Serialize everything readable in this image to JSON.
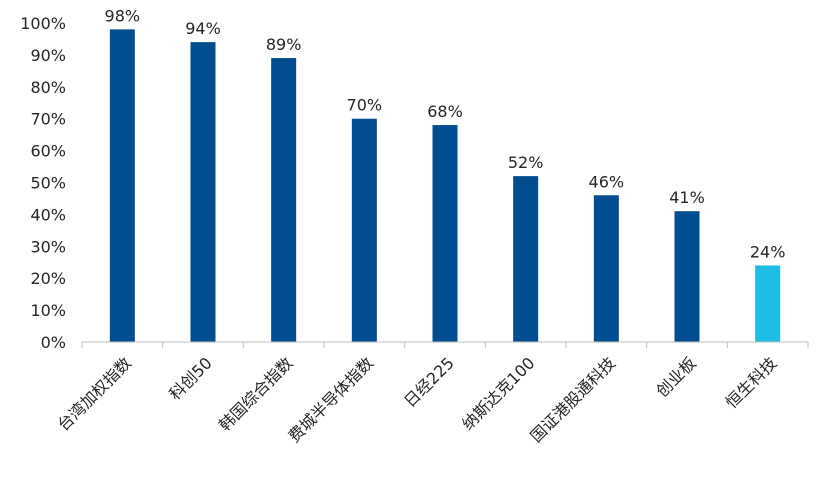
{
  "chart_data": {
    "type": "bar",
    "categories": [
      "台湾加权指数",
      "科创50",
      "韩国综合指数",
      "费城半导体指数",
      "日经225",
      "纳斯达克100",
      "国证港股通科技",
      "创业板",
      "恒生科技"
    ],
    "values": [
      98,
      94,
      89,
      70,
      68,
      52,
      46,
      41,
      24
    ],
    "data_labels": [
      "98%",
      "94%",
      "89%",
      "70%",
      "68%",
      "52%",
      "46%",
      "41%",
      "24%"
    ],
    "y_ticks": [
      "0%",
      "10%",
      "20%",
      "30%",
      "40%",
      "50%",
      "60%",
      "70%",
      "80%",
      "90%",
      "100%"
    ],
    "ylim": [
      0,
      100
    ],
    "grid": false,
    "colors": {
      "default": "#004d8f",
      "highlight": "#1dbde6",
      "highlight_index": 8
    }
  }
}
